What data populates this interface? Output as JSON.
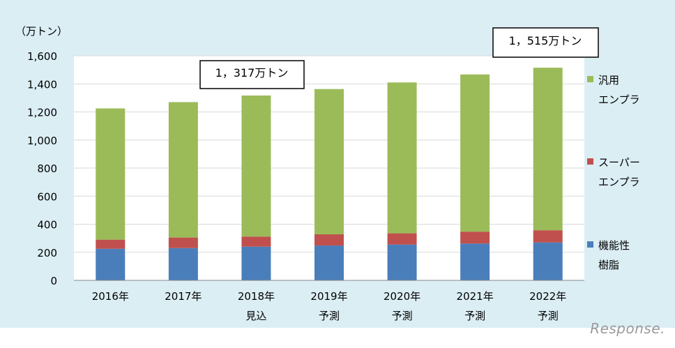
{
  "chart_data": {
    "type": "bar",
    "stacked": true,
    "unit_label": "（万トン）",
    "categories": [
      [
        "2016年"
      ],
      [
        "2017年"
      ],
      [
        "2018年",
        "見込"
      ],
      [
        "2019年",
        "予測"
      ],
      [
        "2020年",
        "予測"
      ],
      [
        "2021年",
        "予測"
      ],
      [
        "2022年",
        "予測"
      ]
    ],
    "series": [
      {
        "name": [
          "機能性",
          "樹脂"
        ],
        "color": "#4a7ebb",
        "values": [
          225,
          230,
          240,
          248,
          255,
          262,
          270
        ]
      },
      {
        "name": [
          "スーパー",
          "エンプラ"
        ],
        "color": "#c0504d",
        "values": [
          65,
          75,
          72,
          80,
          80,
          85,
          87
        ]
      },
      {
        "name": [
          "汎用",
          "エンプラ"
        ],
        "color": "#9bbb59",
        "values": [
          935,
          965,
          1005,
          1035,
          1075,
          1120,
          1158
        ]
      }
    ],
    "ylim": [
      0,
      1600
    ],
    "yticks": [
      "0",
      "200",
      "400",
      "600",
      "800",
      "1,000",
      "1,200",
      "1,400",
      "1,600"
    ],
    "grid": true,
    "legend_position": "right",
    "annotations": [
      "1，317万トン",
      "1，515万トン"
    ]
  },
  "watermark": "Response."
}
